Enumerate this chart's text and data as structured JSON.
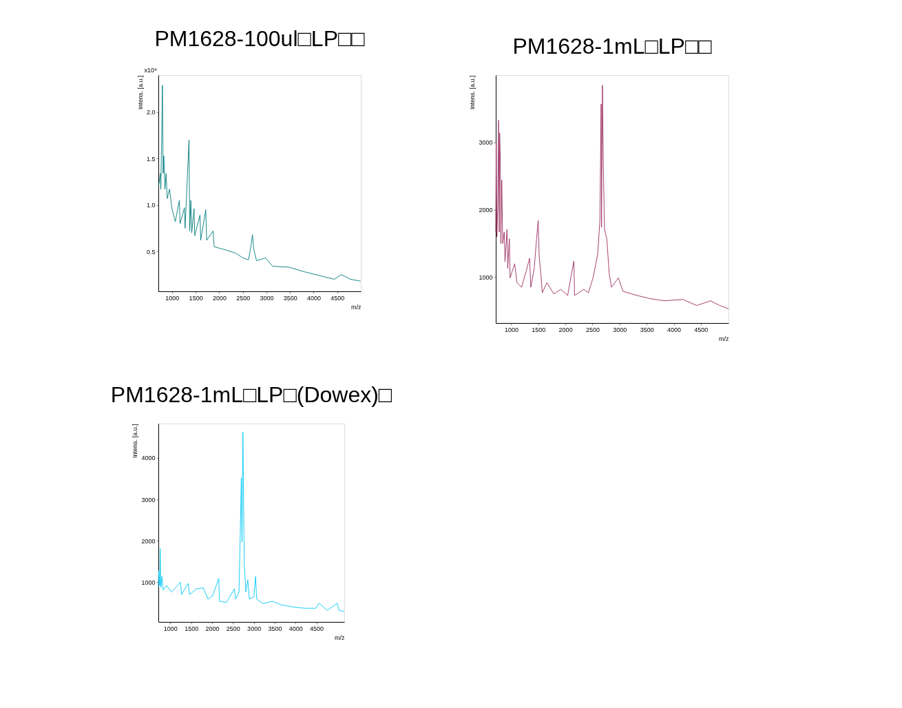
{
  "chart_data": [
    {
      "type": "line",
      "title": "PM1628-100ul□LP□□",
      "xlabel": "m/z",
      "ylabel": "Intens. [a.u.]",
      "annotations": [
        "x10⁴"
      ],
      "xlim": [
        710,
        5000
      ],
      "ylim": [
        0.07,
        2.4
      ],
      "xticks": [
        1000,
        1500,
        2000,
        2500,
        3000,
        3500,
        4000,
        4500
      ],
      "yticks": [
        0.5,
        {
          "value": 1,
          "label": "1.0"
        },
        1.5,
        {
          "value": 2,
          "label": "2.0"
        }
      ],
      "grid": false,
      "series": [
        {
          "color": "#007b7b",
          "x": [
            718,
            752,
            762,
            777,
            796,
            811,
            825,
            850,
            874,
            898,
            947,
            995,
            1044,
            1068,
            1155,
            1170,
            1262,
            1277,
            1359,
            1374,
            1398,
            1417,
            1466,
            1481,
            1592,
            1607,
            1714,
            1733,
            1869,
            1893,
            2112,
            2354,
            2500,
            2621,
            2675,
            2704,
            2733,
            2791,
            2985,
            3131,
            3471,
            3810,
            4199,
            4442,
            4587,
            4781,
            4995
          ],
          "values": [
            1.21,
            1.34,
            1.17,
            1.63,
            2.29,
            1.34,
            1.53,
            1.17,
            1.34,
            1.07,
            1.17,
            0.97,
            0.87,
            0.82,
            1.05,
            0.8,
            0.97,
            0.75,
            1.7,
            0.72,
            1.05,
            0.7,
            0.96,
            0.67,
            0.89,
            0.62,
            0.95,
            0.62,
            0.72,
            0.55,
            0.52,
            0.48,
            0.43,
            0.41,
            0.57,
            0.68,
            0.52,
            0.4,
            0.43,
            0.34,
            0.33,
            0.28,
            0.23,
            0.2,
            0.25,
            0.2,
            0.18
          ]
        }
      ]
    },
    {
      "type": "line",
      "title": "PM1628-1mL□LP□□",
      "xlabel": "m/z",
      "ylabel": "Intens. [a.u.]",
      "xlim": [
        715,
        5010
      ],
      "ylim": [
        320,
        4000
      ],
      "xticks": [
        1000,
        1500,
        2000,
        2500,
        3000,
        3500,
        4000,
        4500
      ],
      "yticks": [
        1000,
        2000,
        3000
      ],
      "grid": false,
      "series": [
        {
          "color": "#9b2d60",
          "x": [
            715,
            724,
            736,
            753,
            766,
            779,
            787,
            800,
            809,
            826,
            843,
            872,
            885,
            923,
            936,
            966,
            979,
            1064,
            1106,
            1191,
            1276,
            1340,
            1362,
            1425,
            1468,
            1498,
            1515,
            1553,
            1574,
            1659,
            1787,
            1914,
            2042,
            2157,
            2170,
            2340,
            2425,
            2510,
            2595,
            2637,
            2659,
            2667,
            2684,
            2701,
            2722,
            2765,
            2808,
            2850,
            2978,
            3063,
            3318,
            3573,
            3828,
            4168,
            4424,
            4679,
            4849,
            5010
          ],
          "values": [
            1670,
            3000,
            1600,
            2080,
            3330,
            1670,
            3140,
            2730,
            1500,
            2440,
            1500,
            1670,
            1230,
            1710,
            1130,
            1570,
            990,
            1200,
            920,
            850,
            1090,
            1280,
            850,
            1130,
            1570,
            1840,
            1330,
            990,
            770,
            920,
            750,
            820,
            730,
            1240,
            730,
            820,
            770,
            990,
            1330,
            1840,
            3570,
            1740,
            3850,
            2630,
            1710,
            1570,
            1060,
            850,
            990,
            790,
            730,
            680,
            650,
            670,
            580,
            650,
            580,
            530
          ]
        }
      ]
    },
    {
      "type": "line",
      "title": "PM1628-1mL□LP□(Dowex)□",
      "xlabel": "m/z",
      "ylabel": "Intens. [a.u.]",
      "xlim": [
        714,
        5166
      ],
      "ylim": [
        40,
        4830
      ],
      "xticks": [
        1000,
        1500,
        2000,
        2500,
        3000,
        3500,
        4000,
        4500
      ],
      "yticks": [
        1000,
        2000,
        3000,
        4000
      ],
      "grid": false,
      "series": [
        {
          "color": "#00c8f5",
          "x": [
            714,
            725,
            747,
            758,
            774,
            802,
            829,
            912,
            1022,
            1132,
            1242,
            1270,
            1424,
            1462,
            1627,
            1792,
            1902,
            2013,
            2161,
            2178,
            2343,
            2535,
            2563,
            2645,
            2673,
            2700,
            2717,
            2739,
            2755,
            2772,
            2810,
            2855,
            2893,
            3003,
            3042,
            3069,
            3223,
            3443,
            3663,
            3939,
            4214,
            4489,
            4560,
            4764,
            4995,
            5039,
            5166
          ],
          "values": [
            870,
            1280,
            920,
            1810,
            870,
            1140,
            810,
            920,
            760,
            870,
            1000,
            700,
            970,
            700,
            840,
            860,
            590,
            670,
            1090,
            540,
            510,
            840,
            590,
            760,
            2060,
            3510,
            1970,
            4620,
            2860,
            1420,
            760,
            1060,
            590,
            650,
            1140,
            590,
            480,
            540,
            450,
            400,
            370,
            370,
            490,
            320,
            490,
            320,
            290
          ]
        }
      ]
    }
  ]
}
